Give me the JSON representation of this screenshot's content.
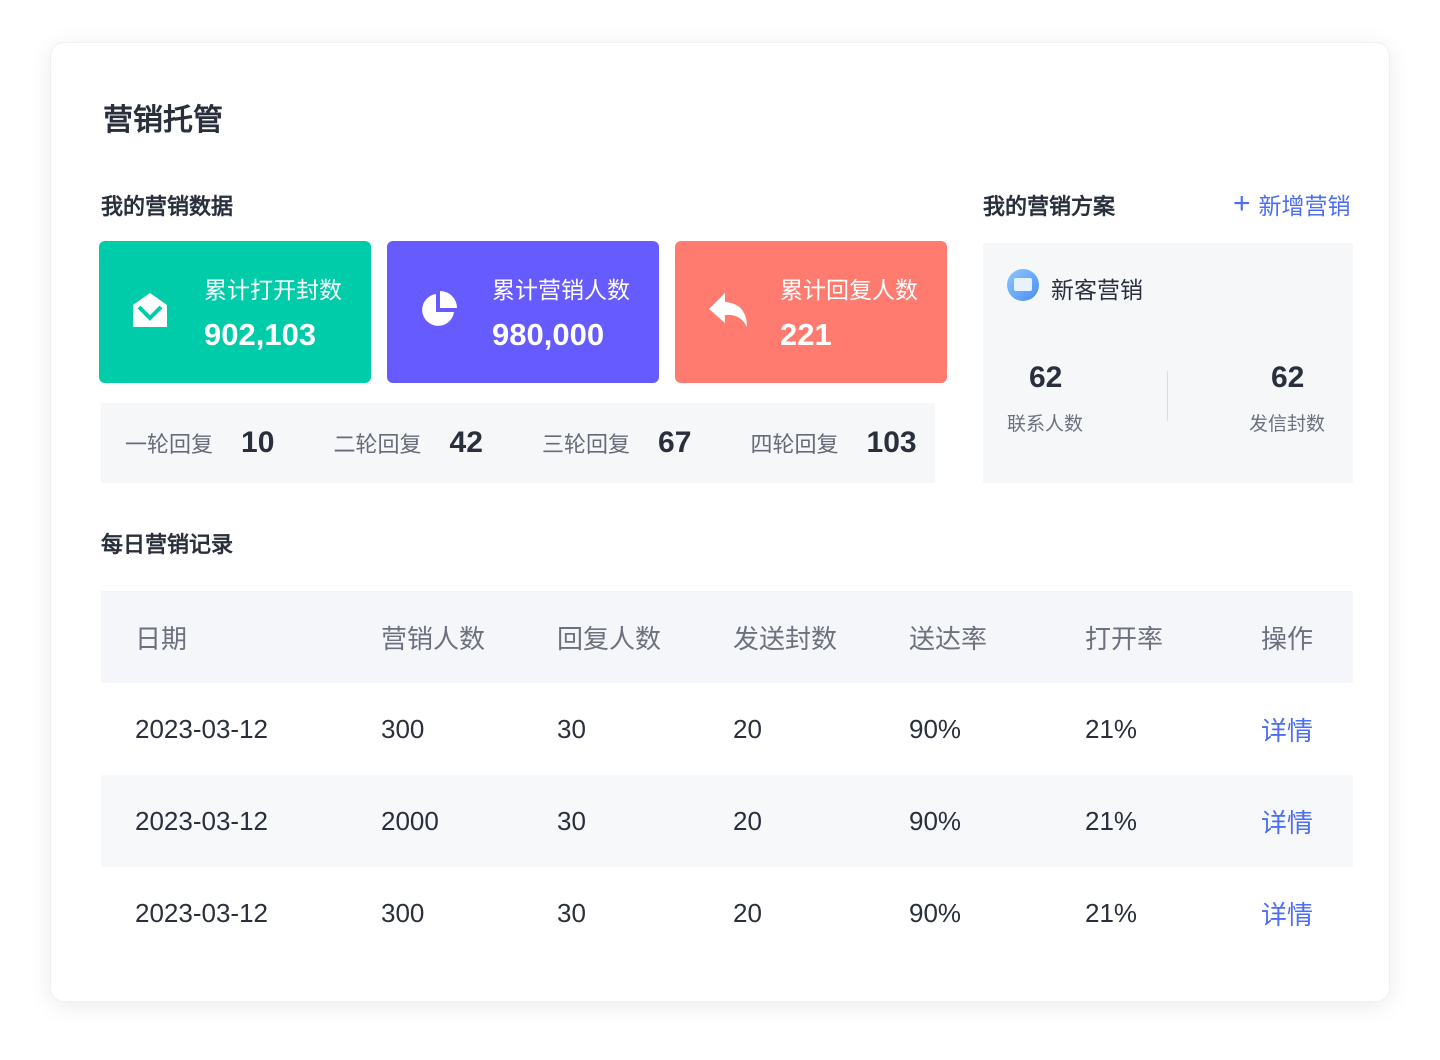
{
  "title": "营销托管",
  "my_data": {
    "heading": "我的营销数据",
    "stats": [
      {
        "label": "累计打开封数",
        "value": "902,103",
        "color": "#00CCA9",
        "icon": "envelope-open-icon"
      },
      {
        "label": "累计营销人数",
        "value": "980,000",
        "color": "#665BFF",
        "icon": "pie-chart-icon"
      },
      {
        "label": "累计回复人数",
        "value": "221",
        "color": "#FF7B6F",
        "icon": "reply-icon"
      }
    ],
    "rounds": [
      {
        "label": "一轮回复",
        "value": "10"
      },
      {
        "label": "二轮回复",
        "value": "42"
      },
      {
        "label": "三轮回复",
        "value": "67"
      },
      {
        "label": "四轮回复",
        "value": "103"
      }
    ]
  },
  "plans": {
    "heading": "我的营销方案",
    "add_label": "新增营销",
    "plan_name": "新客营销",
    "contacts_value": "62",
    "contacts_label": "联系人数",
    "sent_value": "62",
    "sent_label": "发信封数"
  },
  "daily": {
    "heading": "每日营销记录",
    "columns": [
      "日期",
      "营销人数",
      "回复人数",
      "发送封数",
      "送达率",
      "打开率",
      "操作"
    ],
    "rows": [
      [
        "2023-03-12",
        "300",
        "30",
        "20",
        "90%",
        "21%",
        "详情"
      ],
      [
        "2023-03-12",
        "2000",
        "30",
        "20",
        "90%",
        "21%",
        "详情"
      ],
      [
        "2023-03-12",
        "300",
        "30",
        "20",
        "90%",
        "21%",
        "详情"
      ]
    ]
  },
  "colors": {
    "link": "#4B6EF5"
  }
}
